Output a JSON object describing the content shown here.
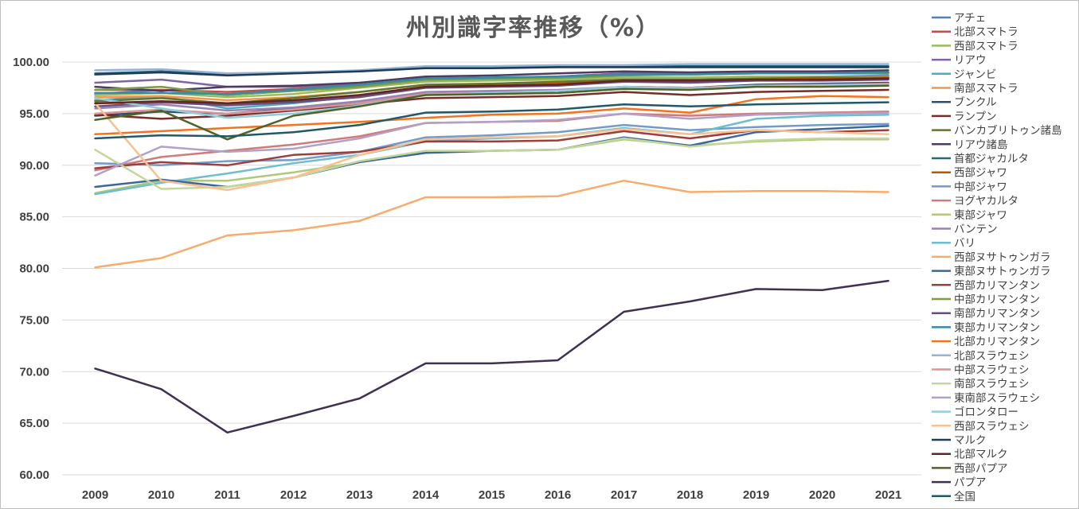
{
  "chart_data": {
    "type": "line",
    "title": "州別識字率推移（%）",
    "xlabel": "",
    "ylabel": "",
    "ylim": [
      60,
      100
    ],
    "y_ticks": [
      "60.00",
      "65.00",
      "70.00",
      "75.00",
      "80.00",
      "85.00",
      "90.00",
      "95.00",
      "100.00"
    ],
    "categories": [
      "2009",
      "2010",
      "2011",
      "2012",
      "2013",
      "2014",
      "2015",
      "2016",
      "2017",
      "2018",
      "2019",
      "2020",
      "2021"
    ],
    "legend_position": "right",
    "grid": true,
    "series": [
      {
        "name": "アチェ",
        "color": "#4f81bd",
        "values": [
          96.9,
          97.3,
          96.8,
          97.2,
          97.6,
          98.2,
          98.3,
          98.4,
          98.5,
          98.5,
          98.6,
          98.6,
          98.7
        ]
      },
      {
        "name": "北部スマトラ",
        "color": "#c0504d",
        "values": [
          97.3,
          97.3,
          97.1,
          97.4,
          97.7,
          98.4,
          98.4,
          98.6,
          98.9,
          98.9,
          99.0,
          99.0,
          99.0
        ]
      },
      {
        "name": "西部スマトラ",
        "color": "#9bbb59",
        "values": [
          96.8,
          97.0,
          96.6,
          96.9,
          97.5,
          98.1,
          98.2,
          98.3,
          98.5,
          98.5,
          98.6,
          98.6,
          98.6
        ]
      },
      {
        "name": "リアウ",
        "color": "#8064a2",
        "values": [
          98.0,
          98.3,
          97.6,
          97.6,
          97.8,
          98.4,
          98.5,
          98.6,
          98.9,
          98.8,
          98.9,
          99.0,
          99.0
        ]
      },
      {
        "name": "ジャンビ",
        "color": "#4bacc6",
        "values": [
          96.3,
          96.7,
          95.5,
          96.0,
          96.7,
          97.6,
          97.7,
          97.9,
          98.1,
          98.2,
          98.4,
          98.4,
          98.4
        ]
      },
      {
        "name": "南部スマトラ",
        "color": "#f79646",
        "values": [
          96.6,
          96.7,
          96.3,
          96.6,
          97.1,
          97.8,
          97.9,
          98.0,
          98.3,
          98.2,
          98.4,
          98.4,
          98.5
        ]
      },
      {
        "name": "ブンクル",
        "color": "#2c4d75",
        "values": [
          94.8,
          95.2,
          95.0,
          95.5,
          96.0,
          96.9,
          97.0,
          97.2,
          97.6,
          97.5,
          97.8,
          97.9,
          98.0
        ]
      },
      {
        "name": "ランプン",
        "color": "#772c2a",
        "values": [
          94.9,
          94.5,
          94.8,
          95.3,
          95.9,
          96.5,
          96.6,
          96.7,
          97.1,
          96.8,
          97.1,
          97.2,
          97.3
        ]
      },
      {
        "name": "バンカブリトゥン諸島",
        "color": "#5f7530",
        "values": [
          96.2,
          96.5,
          96.0,
          96.5,
          97.1,
          97.8,
          97.9,
          98.1,
          98.3,
          98.3,
          98.4,
          98.5,
          98.5
        ]
      },
      {
        "name": "リアウ諸島",
        "color": "#4d3b62",
        "values": [
          97.6,
          97.2,
          97.6,
          97.7,
          98.0,
          98.6,
          98.7,
          98.9,
          99.1,
          99.0,
          99.1,
          99.1,
          99.2
        ]
      },
      {
        "name": "首都ジャカルタ",
        "color": "#276a7c",
        "values": [
          98.9,
          99.1,
          98.8,
          99.0,
          99.1,
          99.5,
          99.5,
          99.6,
          99.6,
          99.6,
          99.6,
          99.6,
          99.6
        ]
      },
      {
        "name": "西部ジャワ",
        "color": "#b65708",
        "values": [
          96.0,
          96.1,
          95.9,
          96.2,
          96.8,
          97.6,
          97.7,
          97.9,
          98.2,
          98.1,
          98.3,
          98.4,
          98.5
        ]
      },
      {
        "name": "中部ジャワ",
        "color": "#729aca",
        "values": [
          90.2,
          90.0,
          90.4,
          90.5,
          91.3,
          92.7,
          92.9,
          93.2,
          93.9,
          93.4,
          93.7,
          93.9,
          94.0
        ]
      },
      {
        "name": "ヨグヤカルタ",
        "color": "#d07b79",
        "values": [
          89.5,
          90.8,
          91.4,
          92.0,
          92.8,
          94.1,
          94.2,
          94.3,
          95.0,
          94.8,
          95.0,
          95.1,
          95.2
        ]
      },
      {
        "name": "東部ジャワ",
        "color": "#afc97a",
        "values": [
          87.3,
          88.5,
          88.5,
          89.3,
          90.3,
          91.3,
          91.4,
          91.5,
          92.5,
          91.9,
          92.3,
          92.5,
          92.5
        ]
      },
      {
        "name": "バンテン",
        "color": "#9983b5",
        "values": [
          95.5,
          95.9,
          95.3,
          95.6,
          96.2,
          97.1,
          97.2,
          97.3,
          97.6,
          97.5,
          97.7,
          97.8,
          97.8
        ]
      },
      {
        "name": "バリ",
        "color": "#6fbdd1",
        "values": [
          87.2,
          88.3,
          89.2,
          90.2,
          91.0,
          92.3,
          92.6,
          92.8,
          93.6,
          93.0,
          94.5,
          94.8,
          94.9
        ]
      },
      {
        "name": "西部ヌサトゥンガラ",
        "color": "#f9ab6b",
        "values": [
          80.1,
          81.0,
          83.2,
          83.7,
          84.6,
          86.9,
          86.9,
          87.0,
          88.5,
          87.4,
          87.5,
          87.5,
          87.4
        ]
      },
      {
        "name": "東部ヌサトゥンガラ",
        "color": "#3a679c",
        "values": [
          87.9,
          88.6,
          87.9,
          88.8,
          90.3,
          91.2,
          91.4,
          91.5,
          92.7,
          91.9,
          93.2,
          93.5,
          93.8
        ]
      },
      {
        "name": "西部カリマンタン",
        "color": "#9e3d3a",
        "values": [
          89.7,
          90.3,
          90.0,
          91.0,
          91.3,
          92.3,
          92.3,
          92.4,
          93.3,
          92.6,
          93.4,
          93.2,
          93.4
        ]
      },
      {
        "name": "中部カリマンタン",
        "color": "#7e9c41",
        "values": [
          97.3,
          97.6,
          96.8,
          97.2,
          97.6,
          98.3,
          98.4,
          98.5,
          98.7,
          98.8,
          98.9,
          98.9,
          98.9
        ]
      },
      {
        "name": "南部カリマンタン",
        "color": "#664f83",
        "values": [
          95.7,
          96.1,
          95.8,
          96.1,
          96.6,
          97.5,
          97.6,
          97.7,
          98.1,
          98.0,
          98.2,
          98.2,
          98.3
        ]
      },
      {
        "name": "東部カリマンタン",
        "color": "#358da5",
        "values": [
          97.0,
          97.0,
          96.9,
          97.3,
          97.8,
          98.4,
          98.5,
          98.6,
          98.8,
          98.8,
          98.9,
          98.9,
          99.0
        ]
      },
      {
        "name": "北部カリマンタン",
        "color": "#f2741f",
        "values": [
          93.0,
          93.3,
          93.6,
          93.9,
          94.2,
          94.6,
          94.9,
          95.0,
          95.5,
          95.1,
          96.4,
          96.7,
          96.6
        ]
      },
      {
        "name": "北部スラウェシ",
        "color": "#95b3d7",
        "values": [
          99.2,
          99.3,
          98.9,
          99.0,
          99.2,
          99.6,
          99.6,
          99.7,
          99.7,
          99.8,
          99.8,
          99.8,
          99.8
        ]
      },
      {
        "name": "中部スラウェシ",
        "color": "#da9694",
        "values": [
          95.0,
          95.4,
          95.0,
          95.4,
          96.0,
          96.9,
          97.0,
          97.2,
          97.6,
          97.5,
          97.7,
          97.8,
          97.9
        ]
      },
      {
        "name": "南部スラウェシ",
        "color": "#c4d79b",
        "values": [
          91.5,
          87.7,
          87.9,
          88.8,
          90.4,
          91.4,
          91.4,
          91.5,
          92.6,
          91.8,
          92.4,
          92.6,
          92.6
        ]
      },
      {
        "name": "東南部スラウェシ",
        "color": "#b1a0c7",
        "values": [
          89.0,
          91.8,
          91.3,
          91.6,
          92.6,
          94.1,
          94.2,
          94.4,
          95.0,
          94.5,
          94.9,
          95.0,
          95.1
        ]
      },
      {
        "name": "ゴロンタロー",
        "color": "#92cddc",
        "values": [
          96.5,
          95.5,
          94.6,
          95.0,
          95.8,
          96.8,
          97.0,
          97.2,
          97.6,
          97.4,
          97.7,
          97.7,
          97.8
        ]
      },
      {
        "name": "西部スラウェシ",
        "color": "#fac090",
        "values": [
          96.0,
          88.5,
          87.6,
          88.8,
          91.0,
          92.5,
          92.7,
          92.8,
          93.5,
          93.0,
          93.4,
          93.2,
          93.0
        ]
      },
      {
        "name": "マルク",
        "color": "#1f3b5a",
        "values": [
          98.8,
          99.0,
          98.7,
          98.9,
          99.1,
          99.4,
          99.4,
          99.5,
          99.5,
          99.5,
          99.5,
          99.5,
          99.5
        ]
      },
      {
        "name": "北部マルク",
        "color": "#632523",
        "values": [
          96.0,
          96.2,
          96.0,
          96.3,
          96.8,
          97.6,
          97.7,
          97.8,
          98.2,
          98.2,
          98.3,
          98.3,
          98.4
        ]
      },
      {
        "name": "西部パプア",
        "color": "#4f6228",
        "values": [
          94.4,
          95.3,
          92.5,
          94.8,
          95.7,
          96.8,
          96.9,
          97.0,
          97.4,
          97.3,
          97.6,
          97.6,
          97.7
        ]
      },
      {
        "name": "パプア",
        "color": "#3f3151",
        "values": [
          70.3,
          68.3,
          64.1,
          65.7,
          67.4,
          70.8,
          70.8,
          71.1,
          75.8,
          76.8,
          78.0,
          77.9,
          78.8
        ]
      },
      {
        "name": "全国",
        "color": "#215968",
        "values": [
          92.6,
          92.9,
          92.8,
          93.2,
          93.9,
          95.1,
          95.2,
          95.4,
          95.9,
          95.7,
          95.9,
          96.0,
          96.1
        ]
      }
    ]
  }
}
